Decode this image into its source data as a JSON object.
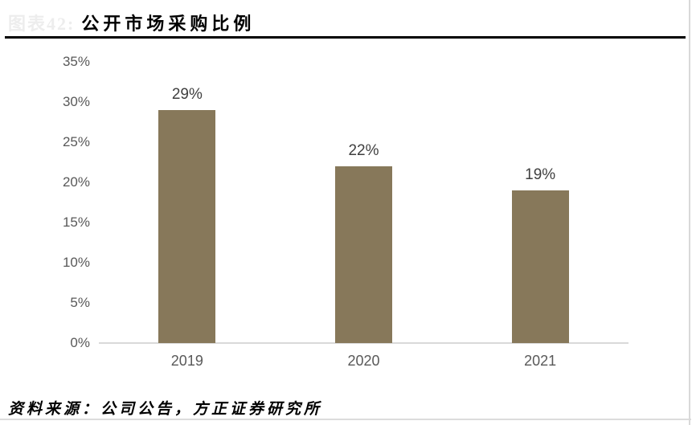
{
  "header": {
    "figure_label": "图表42:",
    "title": "公开市场采购比例"
  },
  "footer": {
    "source": "资料来源：公司公告，方正证券研究所"
  },
  "colors": {
    "bar": "#87785a",
    "axis_text": "#595959",
    "value_label_text": "#3f3f3f",
    "baseline": "#d9d9d9",
    "title_underline": "#000000",
    "faint_label": "#ededed"
  },
  "chart_data": {
    "type": "bar",
    "title": "公开市场采购比例",
    "categories": [
      "2019",
      "2020",
      "2021"
    ],
    "values": [
      29,
      22,
      19
    ],
    "value_labels": [
      "29%",
      "22%",
      "19%"
    ],
    "xlabel": "",
    "ylabel": "",
    "ylim": [
      0,
      35
    ],
    "ytick_step": 5,
    "ytick_labels": [
      "35%",
      "30%",
      "25%",
      "20%",
      "15%",
      "10%",
      "5%",
      "0%"
    ],
    "grid": false,
    "legend": null,
    "bar_color": "#87785a"
  }
}
